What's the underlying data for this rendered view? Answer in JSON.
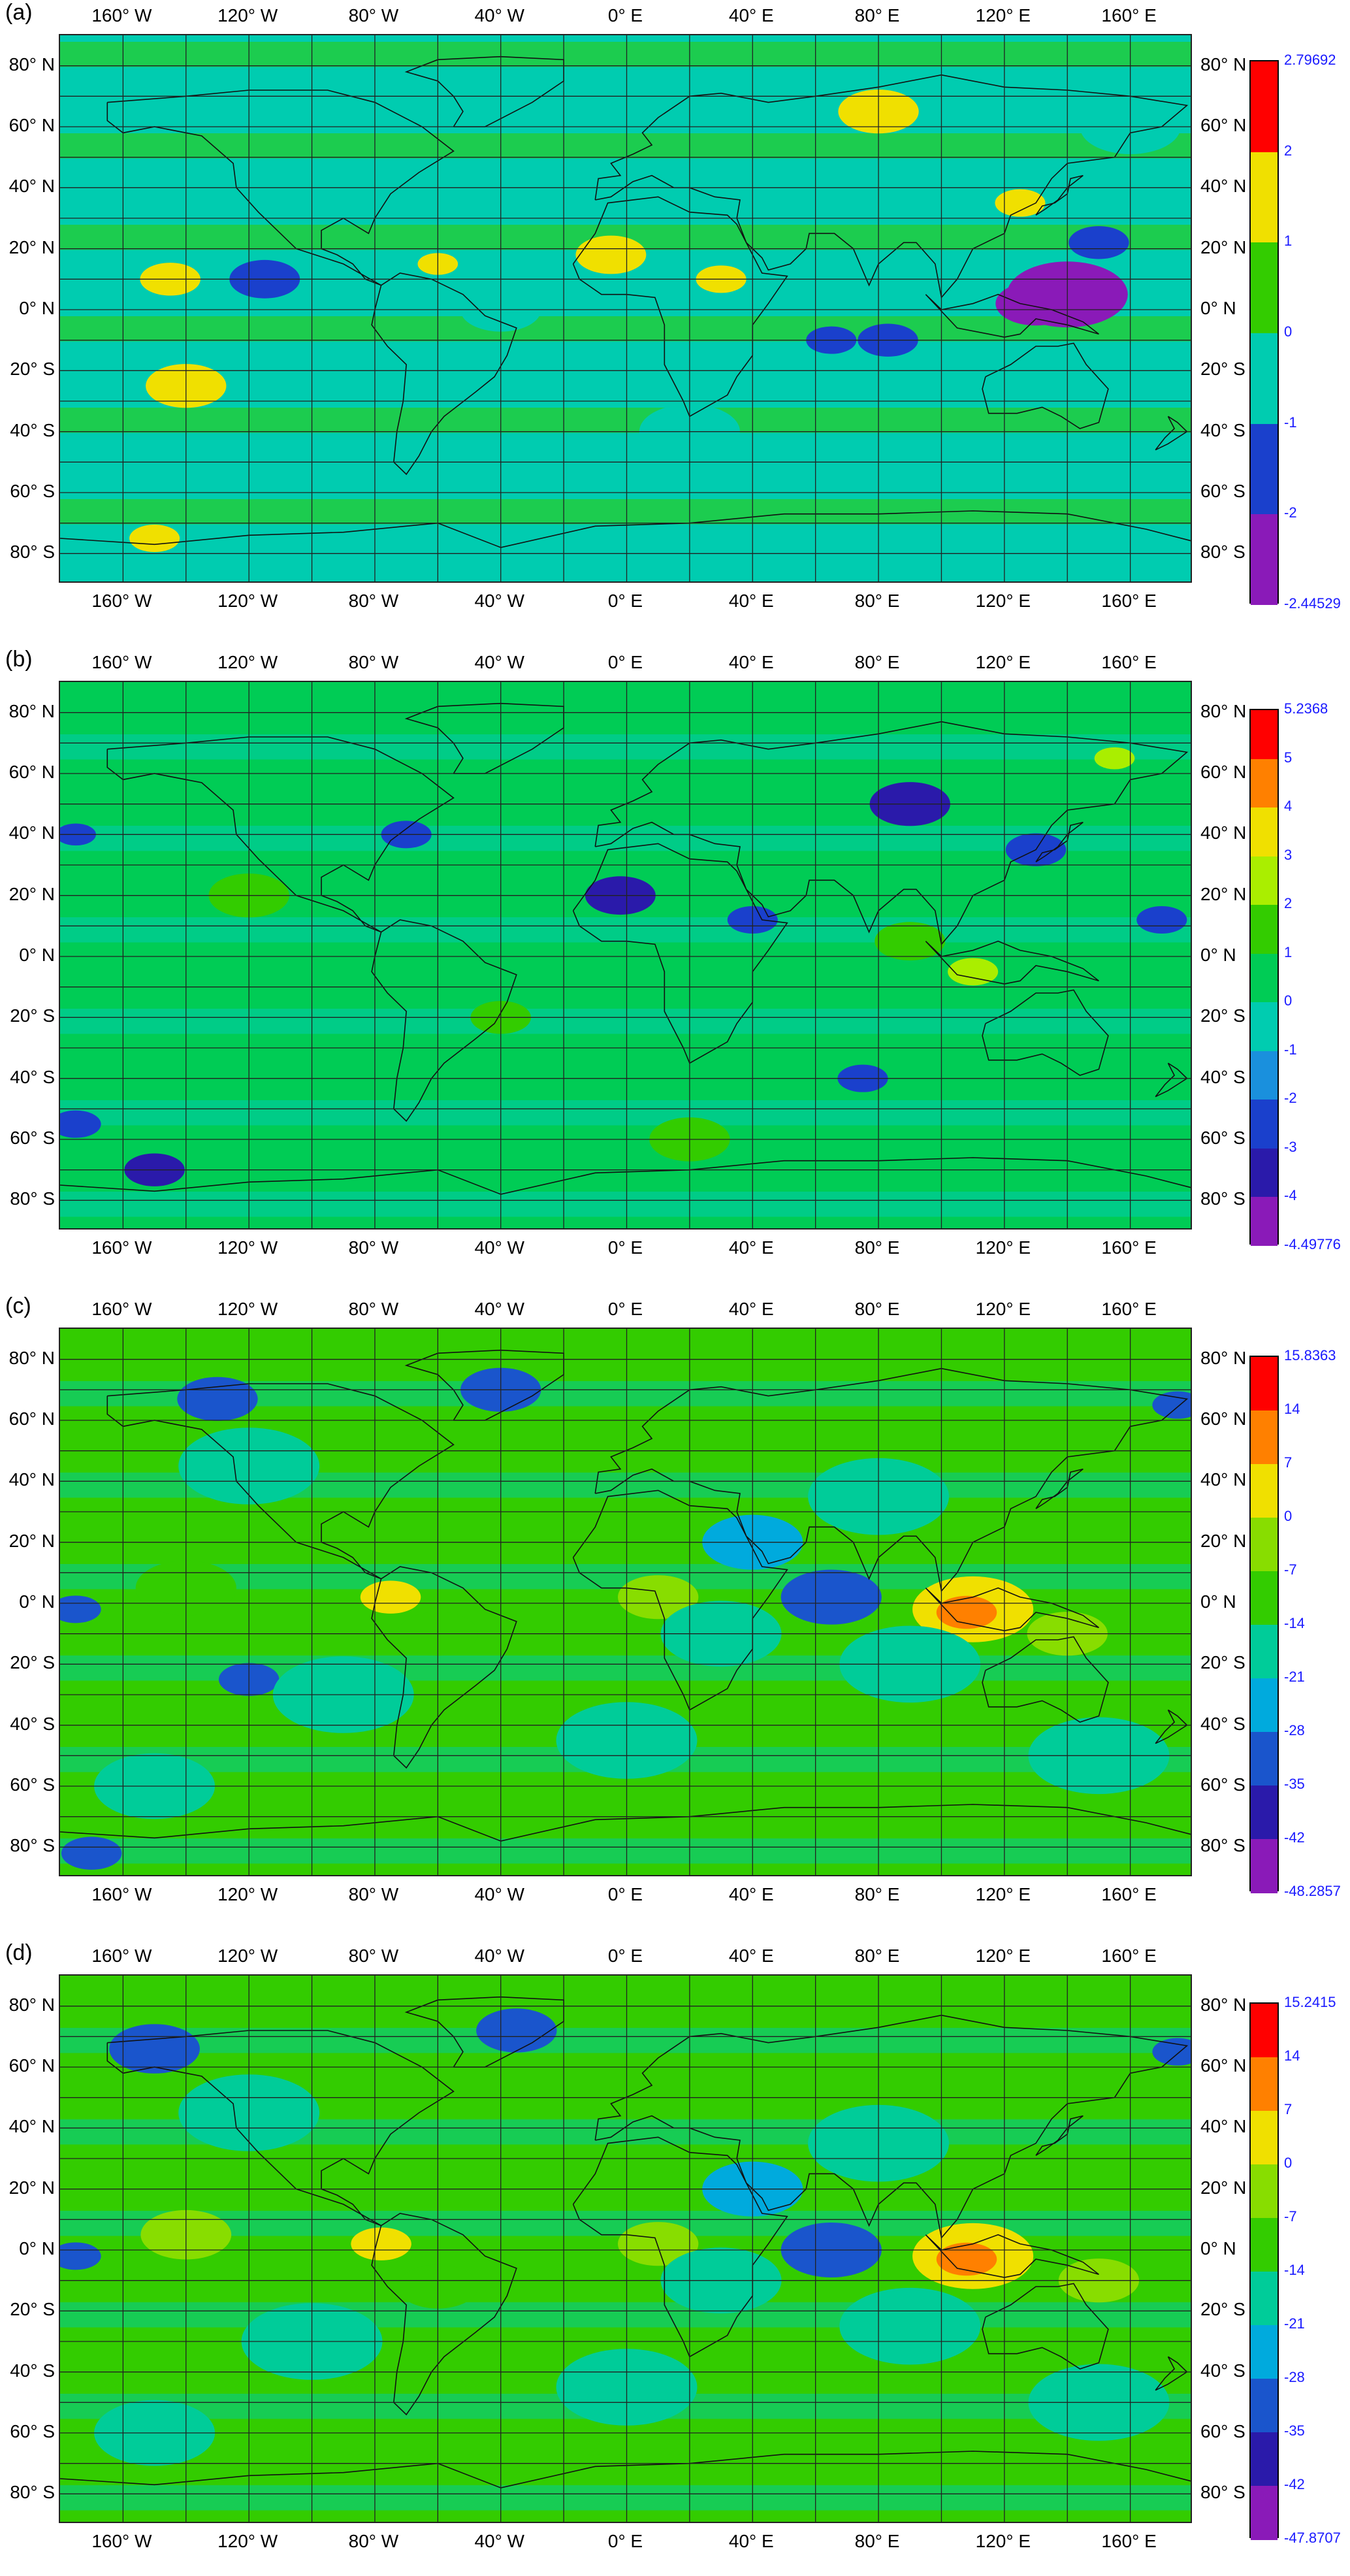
{
  "panels": [
    {
      "label": "(a)",
      "lon_labels": [
        "160° W",
        "120° W",
        "80° W",
        "40° W",
        "0° E",
        "40° E",
        "80° E",
        "120° E",
        "160° E"
      ],
      "lat_labels": [
        "80° N",
        "60° N",
        "40° N",
        "20° N",
        "0° N",
        "20° S",
        "40° S",
        "60° S",
        "80° S"
      ],
      "colorbar": {
        "max_label": "2.79692",
        "min_label": "-2.44529",
        "ticks": [
          "2",
          "1",
          "0",
          "-1",
          "-2"
        ],
        "colors": [
          "#ff0000",
          "#f0e000",
          "#33cc00",
          "#00ccb0",
          "#1a40cc",
          "#8a1ab8"
        ]
      },
      "blobs": [
        {
          "lon": 140,
          "lat": 5,
          "r": 12,
          "c": 5
        },
        {
          "lon": 130,
          "lat": 2,
          "r": 8,
          "c": 5
        },
        {
          "lon": 83,
          "lat": -10,
          "r": 6,
          "c": 4
        },
        {
          "lon": 65,
          "lat": -10,
          "r": 5,
          "c": 4
        },
        {
          "lon": -115,
          "lat": 10,
          "r": 7,
          "c": 4
        },
        {
          "lon": 150,
          "lat": 22,
          "r": 6,
          "c": 4
        },
        {
          "lon": -5,
          "lat": 18,
          "r": 7,
          "c": 1
        },
        {
          "lon": 80,
          "lat": 65,
          "r": 8,
          "c": 1
        },
        {
          "lon": -145,
          "lat": 10,
          "r": 6,
          "c": 1
        },
        {
          "lon": -140,
          "lat": -25,
          "r": 8,
          "c": 1
        },
        {
          "lon": 30,
          "lat": 10,
          "r": 5,
          "c": 1
        },
        {
          "lon": 125,
          "lat": 35,
          "r": 5,
          "c": 1
        },
        {
          "lon": -60,
          "lat": 15,
          "r": 4,
          "c": 1
        },
        {
          "lon": -150,
          "lat": -75,
          "r": 5,
          "c": 1
        },
        {
          "lon": 160,
          "lat": 60,
          "r": 10,
          "c": 3
        },
        {
          "lon": -100,
          "lat": 40,
          "r": 10,
          "c": 3
        },
        {
          "lon": 20,
          "lat": -40,
          "r": 10,
          "c": 3
        },
        {
          "lon": -120,
          "lat": -55,
          "r": 8,
          "c": 3
        },
        {
          "lon": 100,
          "lat": -55,
          "r": 8,
          "c": 3
        },
        {
          "lon": -40,
          "lat": 0,
          "r": 8,
          "c": 3
        },
        {
          "lon": 60,
          "lat": 40,
          "r": 8,
          "c": 3
        }
      ]
    },
    {
      "label": "(b)",
      "lon_labels": [
        "160° W",
        "120° W",
        "80° W",
        "40° W",
        "0° E",
        "40° E",
        "80° E",
        "120° E",
        "160° E"
      ],
      "lat_labels": [
        "80° N",
        "60° N",
        "40° N",
        "20° N",
        "0° N",
        "20° S",
        "40° S",
        "60° S",
        "80° S"
      ],
      "colorbar": {
        "max_label": "5.2368",
        "min_label": "-4.49776",
        "ticks": [
          "5",
          "4",
          "3",
          "2",
          "1",
          "0",
          "-1",
          "-2",
          "-3",
          "-4"
        ],
        "colors": [
          "#ff0000",
          "#ff8000",
          "#f0e000",
          "#aaee00",
          "#33cc00",
          "#00cc55",
          "#00ccb0",
          "#1a90dd",
          "#1a40cc",
          "#2a1aaa",
          "#8a1ab8"
        ]
      },
      "blobs": [
        {
          "lon": -2,
          "lat": 20,
          "r": 7,
          "c": 9
        },
        {
          "lon": 90,
          "lat": 50,
          "r": 8,
          "c": 9
        },
        {
          "lon": -150,
          "lat": -70,
          "r": 6,
          "c": 9
        },
        {
          "lon": 170,
          "lat": 12,
          "r": 5,
          "c": 8
        },
        {
          "lon": 40,
          "lat": 12,
          "r": 5,
          "c": 8
        },
        {
          "lon": 130,
          "lat": 35,
          "r": 6,
          "c": 8
        },
        {
          "lon": -175,
          "lat": -55,
          "r": 5,
          "c": 8
        },
        {
          "lon": -175,
          "lat": 40,
          "r": 4,
          "c": 8
        },
        {
          "lon": -70,
          "lat": 40,
          "r": 5,
          "c": 8
        },
        {
          "lon": 75,
          "lat": -40,
          "r": 5,
          "c": 8
        },
        {
          "lon": 155,
          "lat": 65,
          "r": 4,
          "c": 3
        },
        {
          "lon": 110,
          "lat": -5,
          "r": 5,
          "c": 3
        },
        {
          "lon": -40,
          "lat": -20,
          "r": 6,
          "c": 4
        },
        {
          "lon": 90,
          "lat": 5,
          "r": 7,
          "c": 4
        },
        {
          "lon": -120,
          "lat": 20,
          "r": 8,
          "c": 4
        },
        {
          "lon": 20,
          "lat": -60,
          "r": 8,
          "c": 4
        }
      ]
    },
    {
      "label": "(c)",
      "lon_labels": [
        "160° W",
        "120° W",
        "80° W",
        "40° W",
        "0° E",
        "40° E",
        "80° E",
        "120° E",
        "160° E"
      ],
      "lat_labels": [
        "80° N",
        "60° N",
        "40° N",
        "20° N",
        "0° N",
        "20° S",
        "40° S",
        "60° S",
        "80° S"
      ],
      "colorbar": {
        "max_label": "15.8363",
        "min_label": "-48.2857",
        "ticks": [
          "14",
          "7",
          "0",
          "-7",
          "-14",
          "-21",
          "-28",
          "-35",
          "-42"
        ],
        "colors": [
          "#ff0000",
          "#ff8000",
          "#f0e000",
          "#88dd00",
          "#33cc00",
          "#00cc99",
          "#00aadd",
          "#1a55cc",
          "#2a1aaa",
          "#8a1ab8"
        ]
      },
      "blobs": [
        {
          "lon": 65,
          "lat": 2,
          "r": 10,
          "c": 7
        },
        {
          "lon": -40,
          "lat": 70,
          "r": 8,
          "c": 7
        },
        {
          "lon": -130,
          "lat": 67,
          "r": 8,
          "c": 7
        },
        {
          "lon": -120,
          "lat": -25,
          "r": 6,
          "c": 7
        },
        {
          "lon": 175,
          "lat": 65,
          "r": 5,
          "c": 7
        },
        {
          "lon": -170,
          "lat": -82,
          "r": 6,
          "c": 7
        },
        {
          "lon": -175,
          "lat": -2,
          "r": 5,
          "c": 7
        },
        {
          "lon": 110,
          "lat": -2,
          "r": 12,
          "c": 2
        },
        {
          "lon": 108,
          "lat": -3,
          "r": 6,
          "c": 1
        },
        {
          "lon": -75,
          "lat": 2,
          "r": 6,
          "c": 2
        },
        {
          "lon": 10,
          "lat": 2,
          "r": 8,
          "c": 3
        },
        {
          "lon": -140,
          "lat": 5,
          "r": 10,
          "c": 4
        },
        {
          "lon": 140,
          "lat": -10,
          "r": 8,
          "c": 3
        },
        {
          "lon": -60,
          "lat": -10,
          "r": 8,
          "c": 4
        },
        {
          "lon": 30,
          "lat": -10,
          "r": 12,
          "c": 5
        },
        {
          "lon": 90,
          "lat": -20,
          "r": 14,
          "c": 5
        },
        {
          "lon": -90,
          "lat": -30,
          "r": 14,
          "c": 5
        },
        {
          "lon": 80,
          "lat": 35,
          "r": 14,
          "c": 5
        },
        {
          "lon": -120,
          "lat": 45,
          "r": 14,
          "c": 5
        },
        {
          "lon": 0,
          "lat": -45,
          "r": 14,
          "c": 5
        },
        {
          "lon": 150,
          "lat": -50,
          "r": 14,
          "c": 5
        },
        {
          "lon": -150,
          "lat": -60,
          "r": 12,
          "c": 5
        },
        {
          "lon": 40,
          "lat": 20,
          "r": 10,
          "c": 6
        }
      ]
    },
    {
      "label": "(d)",
      "lon_labels": [
        "160° W",
        "120° W",
        "80° W",
        "40° W",
        "0° E",
        "40° E",
        "80° E",
        "120° E",
        "160° E"
      ],
      "lat_labels": [
        "80° N",
        "60° N",
        "40° N",
        "20° N",
        "0° N",
        "20° S",
        "40° S",
        "60° S",
        "80° S"
      ],
      "colorbar": {
        "max_label": "15.2415",
        "min_label": "-47.8707",
        "ticks": [
          "14",
          "7",
          "0",
          "-7",
          "-14",
          "-21",
          "-28",
          "-35",
          "-42"
        ],
        "colors": [
          "#ff0000",
          "#ff8000",
          "#f0e000",
          "#88dd00",
          "#33cc00",
          "#00cc99",
          "#00aadd",
          "#1a55cc",
          "#2a1aaa",
          "#8a1ab8"
        ]
      },
      "blobs": [
        {
          "lon": 65,
          "lat": 0,
          "r": 10,
          "c": 7
        },
        {
          "lon": -35,
          "lat": 72,
          "r": 8,
          "c": 7
        },
        {
          "lon": -150,
          "lat": 66,
          "r": 9,
          "c": 7
        },
        {
          "lon": 175,
          "lat": 65,
          "r": 5,
          "c": 7
        },
        {
          "lon": -175,
          "lat": -2,
          "r": 5,
          "c": 7
        },
        {
          "lon": 110,
          "lat": -2,
          "r": 12,
          "c": 2
        },
        {
          "lon": 108,
          "lat": -3,
          "r": 6,
          "c": 1
        },
        {
          "lon": -78,
          "lat": 2,
          "r": 6,
          "c": 2
        },
        {
          "lon": -140,
          "lat": 5,
          "r": 9,
          "c": 3
        },
        {
          "lon": 10,
          "lat": 2,
          "r": 8,
          "c": 3
        },
        {
          "lon": 150,
          "lat": -10,
          "r": 8,
          "c": 3
        },
        {
          "lon": -60,
          "lat": -12,
          "r": 8,
          "c": 4
        },
        {
          "lon": 30,
          "lat": -10,
          "r": 12,
          "c": 5
        },
        {
          "lon": 90,
          "lat": -25,
          "r": 14,
          "c": 5
        },
        {
          "lon": -100,
          "lat": -30,
          "r": 14,
          "c": 5
        },
        {
          "lon": 80,
          "lat": 35,
          "r": 14,
          "c": 5
        },
        {
          "lon": -120,
          "lat": 45,
          "r": 14,
          "c": 5
        },
        {
          "lon": 0,
          "lat": -45,
          "r": 14,
          "c": 5
        },
        {
          "lon": 150,
          "lat": -50,
          "r": 14,
          "c": 5
        },
        {
          "lon": -150,
          "lat": -60,
          "r": 12,
          "c": 5
        },
        {
          "lon": 40,
          "lat": 20,
          "r": 10,
          "c": 6
        }
      ]
    }
  ]
}
